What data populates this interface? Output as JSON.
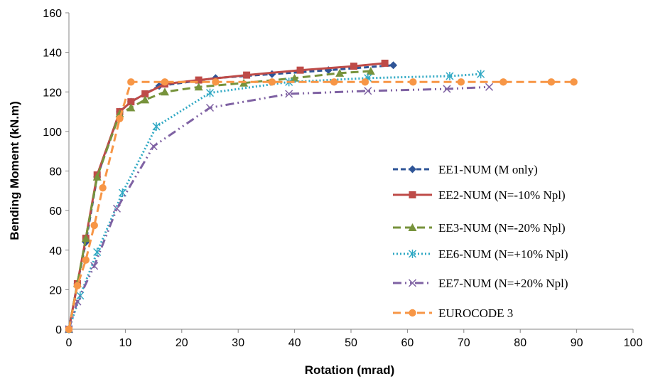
{
  "chart_data": {
    "type": "line",
    "title": "",
    "xlabel": "Rotation (mrad)",
    "ylabel": "Bending Moment (kN.m)",
    "xlim": [
      0,
      100
    ],
    "ylim": [
      0,
      160
    ],
    "xticks": [
      0,
      10,
      20,
      30,
      40,
      50,
      60,
      70,
      80,
      90,
      100
    ],
    "yticks": [
      0,
      20,
      40,
      60,
      80,
      100,
      120,
      140,
      160
    ],
    "grid": false,
    "legend_position": "center-right",
    "series": [
      {
        "name": "EE1-NUM (M only)",
        "color": "#2F5597",
        "marker": "diamond",
        "dash": "dashed",
        "x": [
          0,
          1.5,
          3,
          5,
          9,
          11,
          16,
          26,
          36,
          46,
          57.5
        ],
        "y": [
          0,
          23,
          44,
          77,
          110,
          115,
          123,
          127,
          129,
          131,
          133.5
        ]
      },
      {
        "name": "EE2-NUM (N=-10% Npl)",
        "color": "#BE4B48",
        "marker": "square",
        "dash": "solid",
        "x": [
          0,
          1.5,
          3,
          5,
          9,
          11,
          13.5,
          17,
          23,
          31.5,
          41,
          50.5,
          56
        ],
        "y": [
          0,
          23,
          46,
          78,
          110,
          115,
          119,
          124,
          126,
          128.5,
          131,
          133,
          134.5
        ]
      },
      {
        "name": "EE3-NUM (N=-20% Npl)",
        "color": "#77933C",
        "marker": "triangle",
        "dash": "longdash",
        "x": [
          0,
          1.5,
          3,
          5,
          9,
          11,
          13.5,
          17,
          23,
          31,
          40,
          48,
          53.5
        ],
        "y": [
          0,
          23,
          46,
          77,
          109,
          112,
          116,
          120,
          122.5,
          124.5,
          127,
          129.5,
          130.5
        ]
      },
      {
        "name": "EE6-NUM (N=+10% Npl)",
        "color": "#31A9C4",
        "marker": "asterisk",
        "dash": "dotted",
        "x": [
          0,
          2,
          5,
          9.5,
          15.5,
          25,
          39,
          53,
          67.5,
          73
        ],
        "y": [
          0,
          17,
          39,
          69,
          102.5,
          119.5,
          125,
          127,
          128,
          129
        ]
      },
      {
        "name": "EE7-NUM (N=+20% Npl)",
        "color": "#7F62A3",
        "marker": "x",
        "dash": "dashdotdot",
        "x": [
          0,
          1.5,
          4.5,
          8.5,
          15,
          25,
          39,
          53,
          67,
          74.5
        ],
        "y": [
          0,
          14,
          32,
          61,
          92.5,
          112,
          119,
          120.5,
          121.5,
          122.5
        ]
      },
      {
        "name": "EUROCODE 3",
        "color": "#F79646",
        "marker": "circle",
        "dash": "longdash",
        "x": [
          0,
          1.5,
          3,
          4.5,
          6,
          9,
          11,
          17,
          26,
          36,
          47,
          52.5,
          61,
          69.5,
          77,
          85.5,
          89.5
        ],
        "y": [
          0,
          22,
          35,
          52.5,
          71.5,
          106.5,
          125,
          125,
          125,
          125,
          125,
          125,
          125,
          125,
          125,
          125,
          125
        ]
      }
    ]
  }
}
